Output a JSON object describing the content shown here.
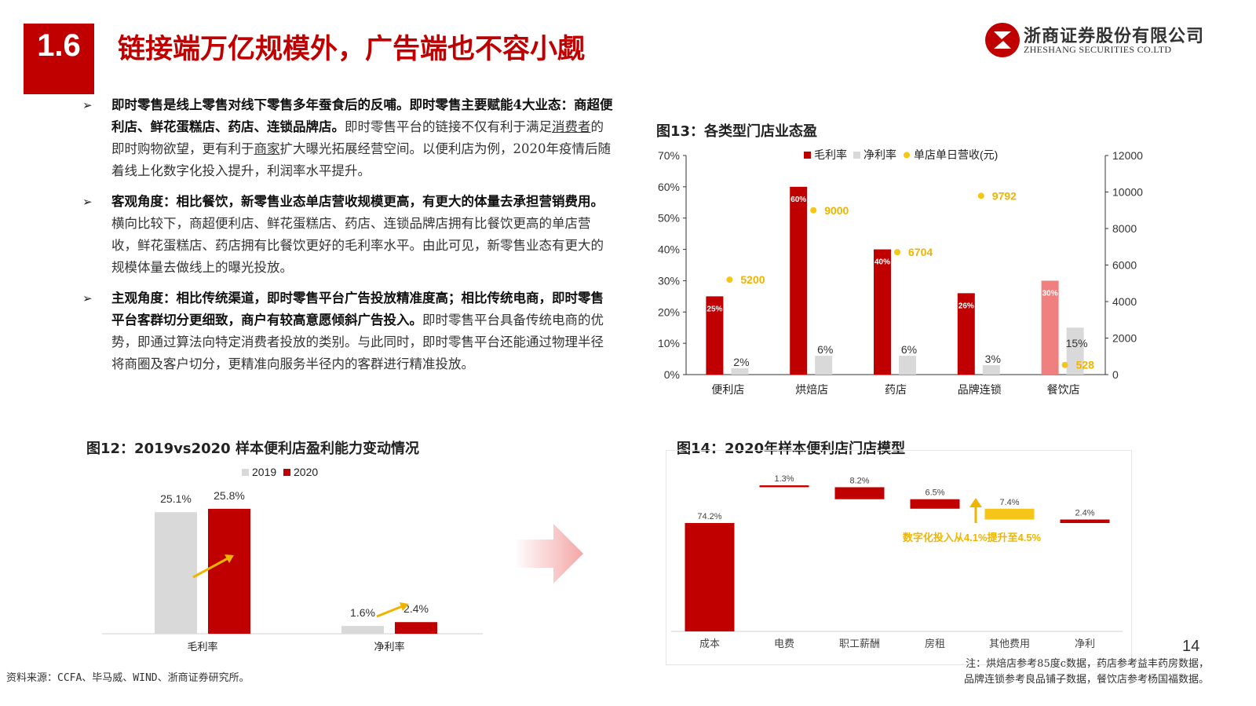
{
  "header": {
    "section_number": "1.6",
    "title": "链接端万亿规模外，广告端也不容小觑",
    "brand_cn": "浙商证券股份有限公司",
    "brand_en": "ZHESHANG SECURITIES CO.LTD",
    "brand_color": "#c00000"
  },
  "bullets": [
    {
      "bold": "即时零售是线上零售对线下零售多年蚕食后的反哺。即时零售主要赋能4大业态：商超便利店、鲜花蛋糕店、药店、连锁品牌店。",
      "p1": "即时零售平台的链接不仅有利于满足",
      "u1": "消费者",
      "p2": "的即时购物欲望，更有利于",
      "u2": "商家",
      "p3": "扩大曝光拓展经营空间。以便利店为例，2020年疫情后随着线上化数字化投入提升，利润率水平提升。"
    },
    {
      "bold": "客观角度：相比餐饮，新零售业态单店营收规模更高，有更大的体量去承担营销费用。",
      "text": "横向比较下，商超便利店、鲜花蛋糕店、药店、连锁品牌店拥有比餐饮更高的单店营收，鲜花蛋糕店、药店拥有比餐饮更好的毛利率水平。由此可见，新零售业态有更大的规模体量去做线上的曝光投放。"
    },
    {
      "bold": "主观角度：相比传统渠道，即时零售平台广告投放精准度高；相比传统电商，即时零售平台客群切分更细致，商户有较高意愿倾斜广告投入。",
      "text": "即时零售平台具备传统电商的优势，即通过算法向特定消费者投放的类别。与此同时，即时零售平台还能通过物理半径将商圈及客户切分，更精准向服务半径内的客群进行精准投放。"
    }
  ],
  "figures": {
    "fig13_title": "图13：各类型门店业态盈",
    "fig12_title": "图12：2019vs2020 样本便利店盈利能力变动情况",
    "fig14_title": "图14：2020年样本便利店门店模型"
  },
  "annotation": "数字化投入从4.1%提升至4.5%",
  "source": "资料来源：CCFA、毕马威、WIND、浙商证券研究所。",
  "note_line1": "注：烘焙店参考85度c数据，药店参考益丰药房数据，",
  "note_line2": "品牌连锁参考良品铺子数据，餐饮店参考杨国福数据。",
  "page_number": "14",
  "chart_data": [
    {
      "id": "fig13",
      "type": "bar",
      "categories": [
        "便利店",
        "烘焙店",
        "药店",
        "品牌连锁",
        "餐饮店"
      ],
      "series": [
        {
          "name": "毛利率",
          "values": [
            25,
            60,
            40,
            26,
            30
          ],
          "labels": [
            "25%",
            "60%",
            "40%",
            "26%",
            "30%"
          ],
          "color": "#c00000",
          "axis": "left"
        },
        {
          "name": "净利率",
          "values": [
            2,
            6,
            6,
            3,
            15
          ],
          "labels": [
            "2%",
            "6%",
            "6%",
            "3%",
            "15%"
          ],
          "color": "#d9d9d9",
          "axis": "left"
        },
        {
          "name": "单店单日营收(元)",
          "values": [
            5200,
            9000,
            6704,
            9792,
            528
          ],
          "labels": [
            "5200",
            "9000",
            "6704",
            "9792",
            "528"
          ],
          "color": "#f5c518",
          "axis": "right",
          "style": "scatter"
        }
      ],
      "highlight_color": "#f08080",
      "y_left_ticks": [
        "0%",
        "10%",
        "20%",
        "30%",
        "40%",
        "50%",
        "60%",
        "70%"
      ],
      "y_right_ticks": [
        "0",
        "2000",
        "4000",
        "6000",
        "8000",
        "10000",
        "12000"
      ],
      "ylim": [
        0,
        70
      ],
      "ylim_right": [
        0,
        12000
      ],
      "legend": "top"
    },
    {
      "id": "fig12",
      "type": "bar",
      "categories": [
        "毛利率",
        "净利率"
      ],
      "series": [
        {
          "name": "2019",
          "values": [
            25.1,
            1.6
          ],
          "labels": [
            "25.1%",
            "1.6%"
          ],
          "color": "#d9d9d9"
        },
        {
          "name": "2020",
          "values": [
            25.8,
            2.4
          ],
          "labels": [
            "25.8%",
            "2.4%"
          ],
          "color": "#c00000"
        }
      ],
      "ylim": [
        0,
        30
      ],
      "legend": "top"
    },
    {
      "id": "fig14",
      "type": "bar",
      "categories": [
        "成本",
        "电费",
        "职工薪酬",
        "房租",
        "其他费用",
        "净利"
      ],
      "values": [
        74.2,
        1.3,
        8.2,
        6.5,
        7.4,
        2.4
      ],
      "labels": [
        "74.2%",
        "1.3%",
        "8.2%",
        "6.5%",
        "7.4%",
        "2.4%"
      ],
      "colors": [
        "#c00000",
        "#c00000",
        "#c00000",
        "#c00000",
        "#f5c518",
        "#c00000"
      ],
      "ylim": [
        0,
        100
      ]
    }
  ]
}
